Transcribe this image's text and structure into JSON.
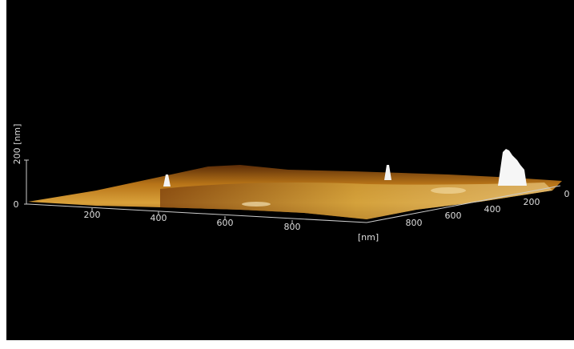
{
  "z_axis": {
    "label": "200 [nm]",
    "zero": "0"
  },
  "x_axis": {
    "ticks": [
      200,
      400,
      600,
      800
    ],
    "unit": "[nm]"
  },
  "y_axis": {
    "ticks": [
      800,
      600,
      400,
      200,
      0
    ]
  }
}
